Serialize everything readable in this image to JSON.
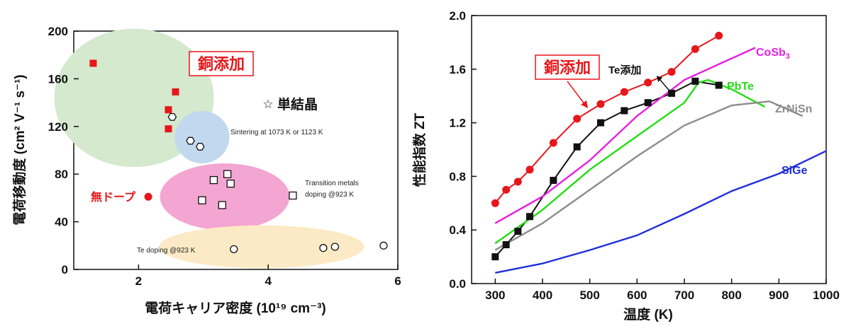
{
  "chart_data": [
    {
      "type": "scatter",
      "title": "",
      "xlabel": "電荷キャリア密度 (10¹⁹ cm⁻³)",
      "ylabel": "電荷移動度 (cm² V⁻¹ s⁻¹)",
      "xlim": [
        1,
        6
      ],
      "ylim": [
        0,
        200
      ],
      "x_ticks": [
        "2",
        "4",
        "6"
      ],
      "y_ticks": [
        "0",
        "40",
        "80",
        "120",
        "160",
        "200"
      ],
      "series": [
        {
          "name": "銅添加",
          "marker": "square",
          "color": "#e8161b",
          "points": [
            [
              1.3,
              173
            ],
            [
              2.57,
              149
            ],
            [
              2.46,
              134
            ],
            [
              2.46,
              118
            ]
          ]
        },
        {
          "name": "無ドープ",
          "marker": "circle",
          "color": "#e8161b",
          "points": [
            [
              2.15,
              61
            ]
          ]
        },
        {
          "name": "単結晶",
          "marker": "star",
          "color": "#111111",
          "points": [
            [
              4.0,
              140
            ]
          ]
        },
        {
          "name": "Sintering at 1073 K or 1123 K",
          "marker": "hexagon-open",
          "color": "#111111",
          "points": [
            [
              2.52,
              128
            ],
            [
              2.8,
              108
            ],
            [
              2.95,
              103
            ]
          ]
        },
        {
          "name": "Transition metals doping @923 K",
          "marker": "square-open",
          "color": "#111111",
          "points": [
            [
              3.16,
              75
            ],
            [
              3.37,
              80
            ],
            [
              3.42,
              72
            ],
            [
              2.98,
              58
            ],
            [
              3.29,
              54
            ],
            [
              4.38,
              62
            ]
          ]
        },
        {
          "name": "Te doping @923 K",
          "marker": "circle-open",
          "color": "#111111",
          "points": [
            [
              3.47,
              17
            ],
            [
              4.85,
              18
            ],
            [
              5.03,
              19
            ],
            [
              5.78,
              20
            ]
          ]
        }
      ],
      "regions": [
        {
          "name": "copper",
          "color": "#d4e9cd"
        },
        {
          "name": "sintering",
          "color": "#c2d8ef"
        },
        {
          "name": "transition-metals",
          "color": "#f4a6d2"
        },
        {
          "name": "te-doping",
          "color": "#fbeac5"
        }
      ],
      "labels": {
        "copper": "銅添加",
        "undoped": "無ドープ",
        "single_crystal": "単結晶",
        "star_glyph": "☆",
        "sintering": "Sintering at 1073 K or 1123 K",
        "transition_1": "Transition metals",
        "transition_2": "doping @923 K",
        "te_doping": "Te doping @923 K"
      }
    },
    {
      "type": "line",
      "title": "",
      "xlabel": "温度 (K)",
      "ylabel": "性能指数 ZT",
      "xlim": [
        250,
        1000
      ],
      "ylim": [
        0,
        2.0
      ],
      "x_ticks": [
        "300",
        "400",
        "500",
        "600",
        "700",
        "800",
        "900",
        "1000"
      ],
      "y_ticks": [
        "0.0",
        "0.4",
        "0.8",
        "1.2",
        "1.6",
        "2.0"
      ],
      "series": [
        {
          "name": "銅添加",
          "color": "#e8161b",
          "marker": "circle",
          "x": [
            300,
            323,
            348,
            373,
            423,
            473,
            523,
            573,
            623,
            673,
            723,
            773
          ],
          "y": [
            0.6,
            0.7,
            0.76,
            0.85,
            1.05,
            1.23,
            1.34,
            1.43,
            1.5,
            1.58,
            1.75,
            1.85
          ]
        },
        {
          "name": "Te添加",
          "color": "#111111",
          "marker": "square",
          "x": [
            300,
            323,
            348,
            373,
            423,
            473,
            523,
            573,
            623,
            673,
            723,
            773
          ],
          "y": [
            0.2,
            0.29,
            0.39,
            0.5,
            0.77,
            1.02,
            1.2,
            1.29,
            1.35,
            1.42,
            1.51,
            1.48
          ]
        },
        {
          "name": "CoSb3",
          "color": "#e61fe0",
          "marker": "none",
          "x": [
            300,
            400,
            500,
            600,
            700,
            800,
            850
          ],
          "y": [
            0.45,
            0.65,
            0.92,
            1.25,
            1.52,
            1.68,
            1.76
          ]
        },
        {
          "name": "PbTe",
          "color": "#22dd11",
          "marker": "none",
          "x": [
            300,
            400,
            500,
            600,
            700,
            730,
            750,
            800,
            870
          ],
          "y": [
            0.3,
            0.55,
            0.85,
            1.1,
            1.35,
            1.5,
            1.52,
            1.45,
            1.32
          ]
        },
        {
          "name": "ZrNiSn",
          "color": "#8c8c8c",
          "marker": "none",
          "x": [
            300,
            400,
            500,
            600,
            700,
            800,
            880,
            950
          ],
          "y": [
            0.25,
            0.45,
            0.7,
            0.95,
            1.18,
            1.33,
            1.36,
            1.25
          ]
        },
        {
          "name": "SiGe",
          "color": "#1f2fd9",
          "marker": "none",
          "x": [
            300,
            400,
            500,
            600,
            700,
            800,
            900,
            1000
          ],
          "y": [
            0.08,
            0.15,
            0.25,
            0.36,
            0.52,
            0.69,
            0.82,
            0.99
          ]
        }
      ],
      "labels": {
        "copper": "銅添加",
        "te": "Te添加",
        "cosb_main": "CoSb",
        "cosb_sub": "3",
        "pbte": "PbTe",
        "zrnisn": "ZrNiSn",
        "sige": "SiGe"
      }
    }
  ]
}
